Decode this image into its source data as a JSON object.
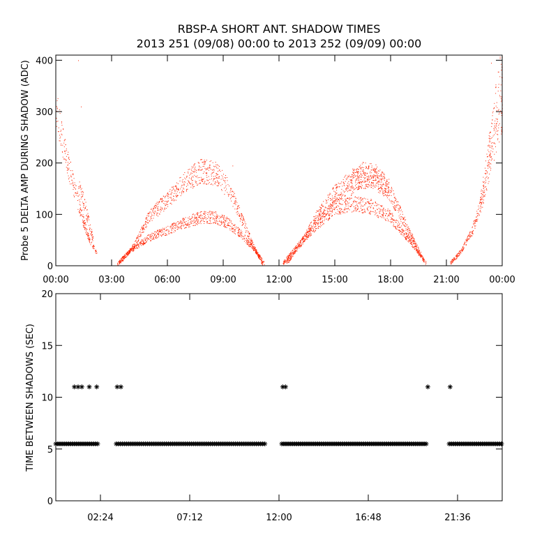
{
  "title": "RBSP-A SHORT ANT. SHADOW TIMES",
  "subtitle": "2013 251 (09/08) 00:00 to 2013 252 (09/09) 00:00",
  "colors": {
    "amplitude_points": "#ff2200",
    "interval_points": "#000000",
    "axes": "#000000"
  },
  "chart_data": [
    {
      "type": "scatter",
      "ylabel": "Probe 5 DELTA AMP DURING SHADOW (ADC)",
      "x_unit": "hours",
      "xlim": [
        0,
        24
      ],
      "ylim": [
        0,
        410
      ],
      "x_ticks": [
        0,
        3,
        6,
        9,
        12,
        15,
        18,
        21,
        24
      ],
      "x_tick_labels": [
        "00:00",
        "03:00",
        "06:00",
        "09:00",
        "12:00",
        "15:00",
        "18:00",
        "21:00",
        "00:00"
      ],
      "y_ticks": [
        0,
        100,
        200,
        300,
        400
      ],
      "y_tick_labels": [
        "0",
        "100",
        "200",
        "300",
        "400"
      ],
      "series": [
        {
          "marker": "dot",
          "bands": [
            {
              "x": [
                0.0,
                0.3,
                0.6,
                1.0,
                1.4,
                1.8,
                2.2
              ],
              "y": [
                305,
                255,
                205,
                150,
                95,
                50,
                25
              ]
            },
            {
              "x": [
                1.2,
                1.6,
                2.0
              ],
              "y": [
                160,
                110,
                50
              ]
            },
            {
              "x": [
                3.3,
                4.0,
                5.0,
                6.0,
                7.0,
                7.8,
                8.5,
                9.2,
                10.0,
                10.7,
                11.2
              ],
              "y": [
                5,
                30,
                55,
                70,
                85,
                95,
                95,
                85,
                60,
                30,
                5
              ]
            },
            {
              "x": [
                3.4,
                4.2,
                5.0,
                6.0,
                7.0,
                7.8,
                8.6,
                9.3,
                10.0,
                10.6,
                11.1
              ],
              "y": [
                5,
                40,
                95,
                130,
                165,
                185,
                180,
                150,
                90,
                40,
                5
              ]
            },
            {
              "x": [
                12.2,
                13.0,
                14.0,
                15.0,
                16.0,
                17.0,
                18.0,
                19.0,
                19.9
              ],
              "y": [
                5,
                40,
                80,
                115,
                120,
                115,
                95,
                50,
                5
              ]
            },
            {
              "x": [
                12.4,
                13.2,
                14.0,
                15.0,
                16.0,
                17.0,
                18.0,
                18.8,
                19.8
              ],
              "y": [
                5,
                45,
                95,
                140,
                170,
                175,
                140,
                80,
                10
              ]
            },
            {
              "x": [
                15.8,
                16.5,
                17.2,
                17.9
              ],
              "y": [
                155,
                180,
                175,
                150
              ]
            },
            {
              "x": [
                21.2,
                21.8,
                22.4,
                23.0,
                23.5,
                24.0
              ],
              "y": [
                5,
                30,
                70,
                140,
                230,
                300
              ]
            },
            {
              "x": [
                22.8,
                23.3,
                23.7,
                24.0
              ],
              "y": [
                120,
                230,
                330,
                400
              ]
            }
          ],
          "outliers": [
            {
              "x": 1.2,
              "y": 400
            },
            {
              "x": 1.35,
              "y": 310
            },
            {
              "x": 9.5,
              "y": 195
            },
            {
              "x": 23.4,
              "y": 395
            }
          ]
        }
      ]
    },
    {
      "type": "scatter",
      "ylabel": "TIME BETWEEN SHADOWS (SEC)",
      "x_unit": "hours",
      "xlim": [
        0,
        24
      ],
      "ylim": [
        0,
        20
      ],
      "x_ticks": [
        2.4,
        7.2,
        12,
        16.8,
        21.6
      ],
      "x_tick_labels": [
        "02:24",
        "07:12",
        "12:00",
        "16:48",
        "21:36"
      ],
      "y_ticks": [
        0,
        5,
        10,
        15,
        20
      ],
      "y_tick_labels": [
        "0",
        "5",
        "10",
        "15",
        "20"
      ],
      "series": [
        {
          "marker": "asterisk",
          "baseline_value": 5.5,
          "baseline_segments": [
            [
              0.0,
              2.35
            ],
            [
              3.25,
              11.25
            ],
            [
              12.15,
              19.95
            ],
            [
              21.15,
              24.0
            ]
          ],
          "points": [
            {
              "x": 1.0,
              "y": 11
            },
            {
              "x": 1.2,
              "y": 11
            },
            {
              "x": 1.4,
              "y": 11
            },
            {
              "x": 1.8,
              "y": 11
            },
            {
              "x": 2.2,
              "y": 11
            },
            {
              "x": 3.3,
              "y": 11
            },
            {
              "x": 3.5,
              "y": 11
            },
            {
              "x": 12.2,
              "y": 11
            },
            {
              "x": 12.35,
              "y": 11
            },
            {
              "x": 20.0,
              "y": 11
            },
            {
              "x": 21.2,
              "y": 11
            }
          ]
        }
      ]
    }
  ]
}
